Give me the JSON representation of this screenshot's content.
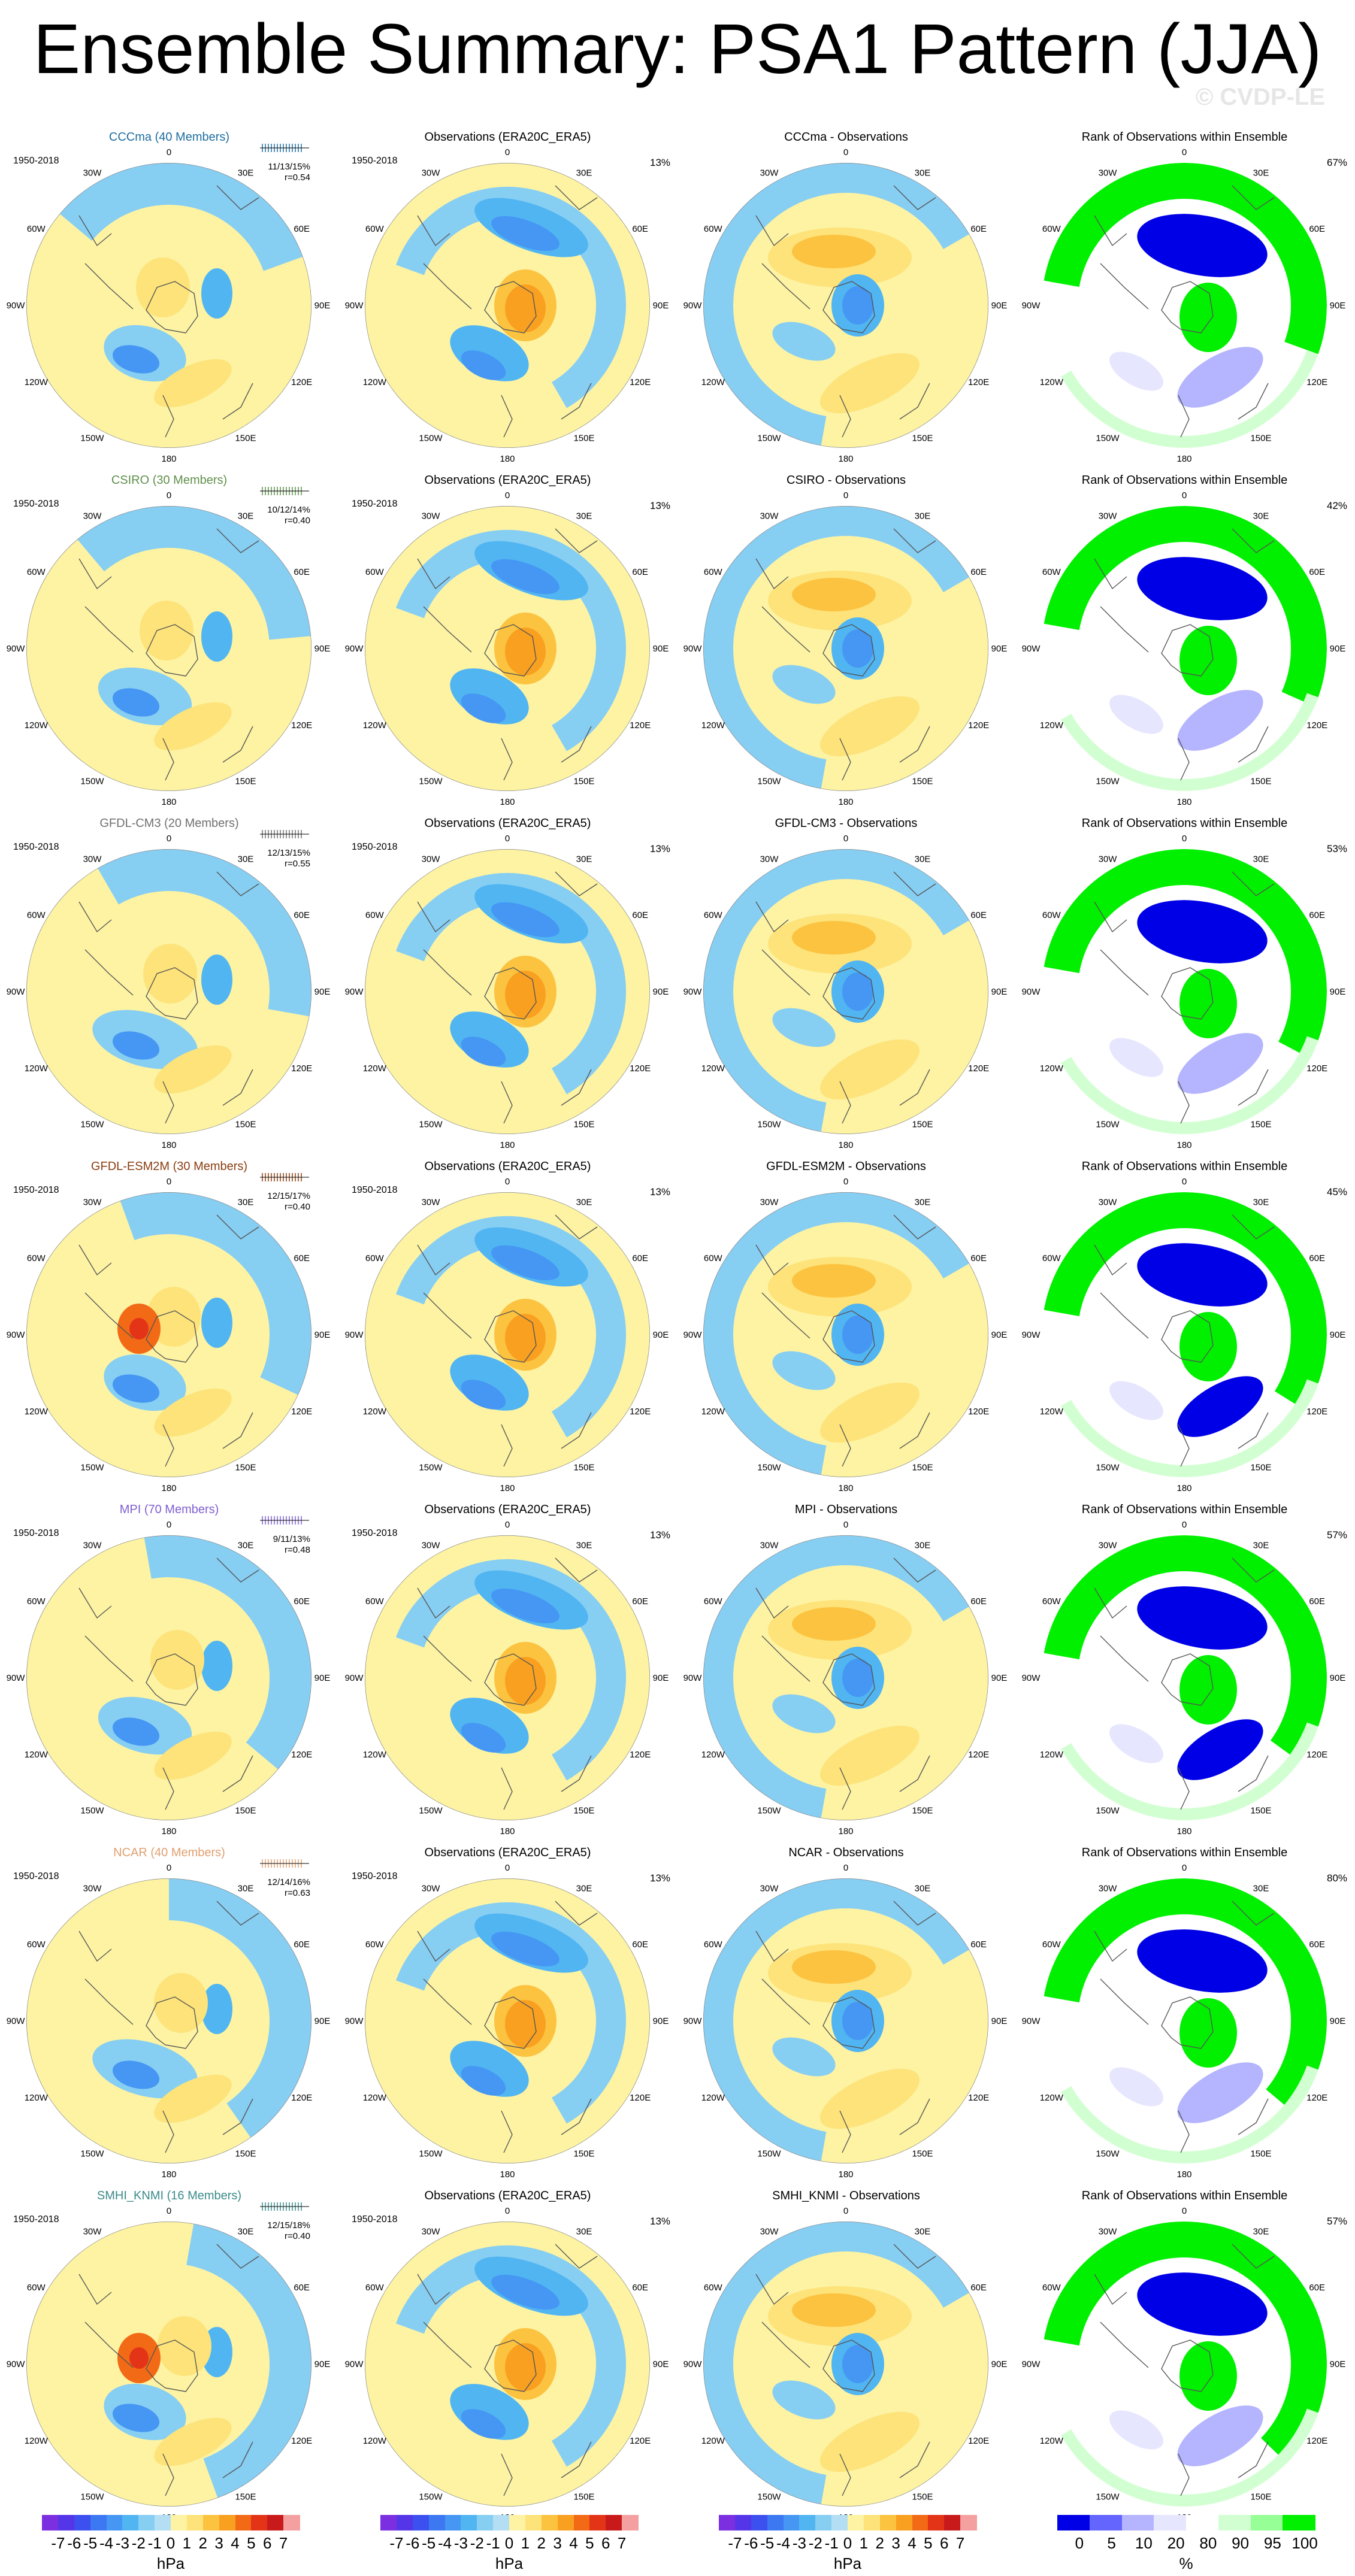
{
  "title": "Ensemble Summary: PSA1 Pattern (JJA)",
  "watermark": "© CVDP-LE",
  "period": "1950-2018",
  "obs_title": "Observations (ERA20C_ERA5)",
  "obs_pct": "13%",
  "rank_title": "Rank of Observations within Ensemble",
  "lon_labels": [
    "0",
    "30E",
    "60E",
    "90E",
    "120E",
    "150E",
    "180",
    "150W",
    "120W",
    "90W",
    "60W",
    "30W"
  ],
  "rows": [
    {
      "model": "CCCma (40 Members)",
      "color": "#1f6ea0",
      "stats": "11/13/15%",
      "r": "r=0.54",
      "diff": "CCCma - Observations",
      "rank_pct": "67%"
    },
    {
      "model": "CSIRO (30 Members)",
      "color": "#5f8f4a",
      "stats": "10/12/14%",
      "r": "r=0.40",
      "diff": "CSIRO - Observations",
      "rank_pct": "42%"
    },
    {
      "model": "GFDL-CM3 (20 Members)",
      "color": "#707070",
      "stats": "12/13/15%",
      "r": "r=0.55",
      "diff": "GFDL-CM3 - Observations",
      "rank_pct": "53%"
    },
    {
      "model": "GFDL-ESM2M (30 Members)",
      "color": "#8a3d10",
      "stats": "12/15/17%",
      "r": "r=0.40",
      "diff": "GFDL-ESM2M - Observations",
      "rank_pct": "45%"
    },
    {
      "model": "MPI (70 Members)",
      "color": "#7f5fd0",
      "stats": "9/11/13%",
      "r": "r=0.48",
      "diff": "MPI - Observations",
      "rank_pct": "57%"
    },
    {
      "model": "NCAR (40 Members)",
      "color": "#e0a070",
      "stats": "12/14/16%",
      "r": "r=0.63",
      "diff": "NCAR - Observations",
      "rank_pct": "80%"
    },
    {
      "model": "SMHI_KNMI (16 Members)",
      "color": "#3b8a8a",
      "stats": "12/15/18%",
      "r": "r=0.40",
      "diff": "SMHI_KNMI - Observations",
      "rank_pct": "57%"
    }
  ],
  "colorbar_hpa": {
    "ticks": [
      "-7",
      "-6",
      "-5",
      "-4",
      "-3",
      "-2",
      "-1",
      "0",
      "1",
      "2",
      "3",
      "4",
      "5",
      "6",
      "7"
    ],
    "colors": [
      "#7b2fe0",
      "#5535e8",
      "#3c50f0",
      "#3b78f2",
      "#4597f3",
      "#51b5f2",
      "#87cef3",
      "#b3def4",
      "#fdf3a3",
      "#fde37a",
      "#fcc340",
      "#f9a020",
      "#f26a16",
      "#e33418",
      "#c81a1a",
      "#f5a0a0"
    ],
    "unit": "hPa"
  },
  "colorbar_rank": {
    "ticks": [
      "0",
      "5",
      "10",
      "20",
      "80",
      "90",
      "95",
      "100"
    ],
    "colors": [
      "#0000e6",
      "#6464ff",
      "#b4b4ff",
      "#e6e6ff",
      "#ffffff",
      "#d2ffd2",
      "#96ff96",
      "#00f000"
    ],
    "unit": "%"
  }
}
